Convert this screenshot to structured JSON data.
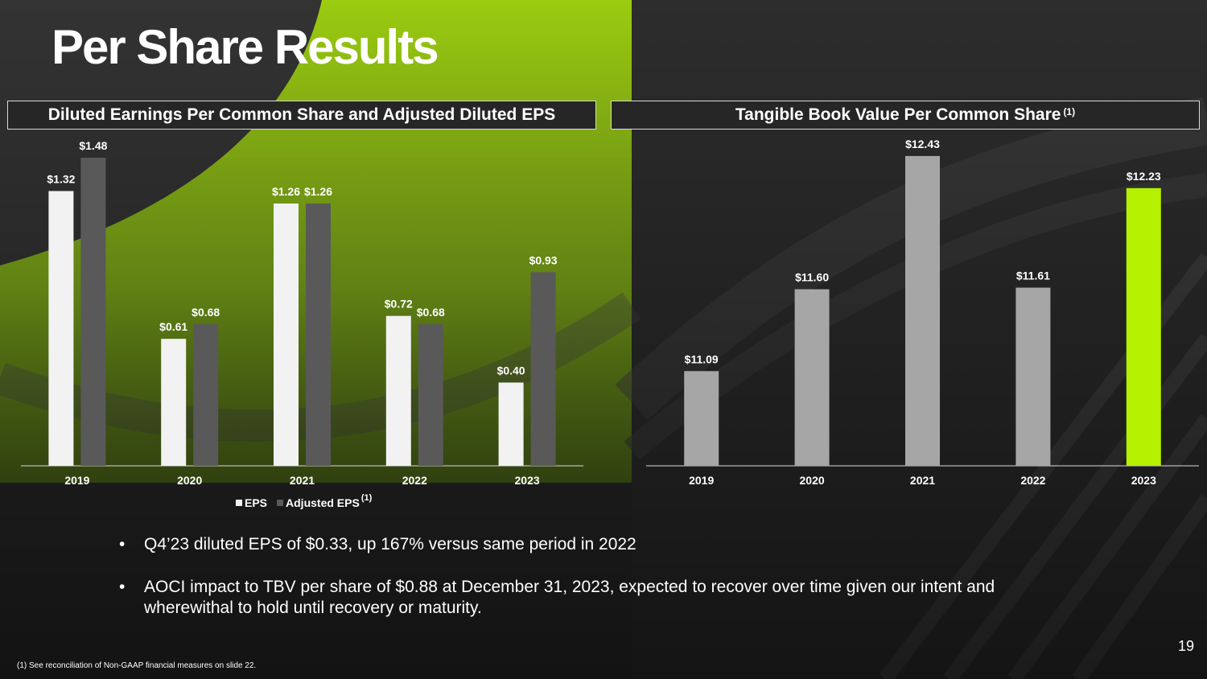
{
  "title": "Per Share Results",
  "colors": {
    "eps": "#f2f2f2",
    "adjusted_eps": "#595959",
    "tbv": "#a6a6a6",
    "tbv_highlight": "#b4f000",
    "accent_green": "#8fbf0c"
  },
  "left_panel": {
    "heading": "Diluted Earnings Per Common Share and Adjusted Diluted EPS"
  },
  "right_panel": {
    "heading": "Tangible Book Value Per Common Share",
    "heading_note": "(1)"
  },
  "legend": {
    "eps": "EPS",
    "adjusted_eps": "Adjusted EPS",
    "adjusted_note": "(1)"
  },
  "chart_data": [
    {
      "type": "bar",
      "title": "Diluted Earnings Per Common Share and Adjusted Diluted EPS",
      "categories": [
        "2019",
        "2020",
        "2021",
        "2022",
        "2023"
      ],
      "series": [
        {
          "name": "EPS",
          "values": [
            1.32,
            0.61,
            1.26,
            0.72,
            0.4
          ],
          "labels": [
            "$1.32",
            "$0.61",
            "$1.26",
            "$0.72",
            "$0.40"
          ]
        },
        {
          "name": "Adjusted EPS",
          "values": [
            1.48,
            0.68,
            1.26,
            0.68,
            0.93
          ],
          "labels": [
            "$1.48",
            "$0.68",
            "$1.26",
            "$0.68",
            "$0.93"
          ]
        }
      ],
      "ylim": [
        0,
        1.6
      ],
      "legend": "bottom",
      "grid": false
    },
    {
      "type": "bar",
      "title": "Tangible Book Value Per Common Share",
      "categories": [
        "2019",
        "2020",
        "2021",
        "2022",
        "2023"
      ],
      "series": [
        {
          "name": "TBV per share",
          "values": [
            11.09,
            11.6,
            12.43,
            11.61,
            12.23
          ],
          "labels": [
            "$11.09",
            "$11.60",
            "$12.43",
            "$11.61",
            "$12.23"
          ]
        }
      ],
      "ylim": [
        10.5,
        12.6
      ],
      "highlight_index": 4,
      "grid": false
    }
  ],
  "bullets": [
    "Q4’23 diluted EPS of $0.33, up 167% versus same period in 2022",
    "AOCI impact to TBV per share of $0.88 at December 31, 2023, expected to recover over time given our intent and wherewithal to hold until recovery or maturity."
  ],
  "bullet_glyph": "•",
  "footnote": "(1)  See reconciliation of Non-GAAP financial measures on slide 22.",
  "page_number": "19"
}
